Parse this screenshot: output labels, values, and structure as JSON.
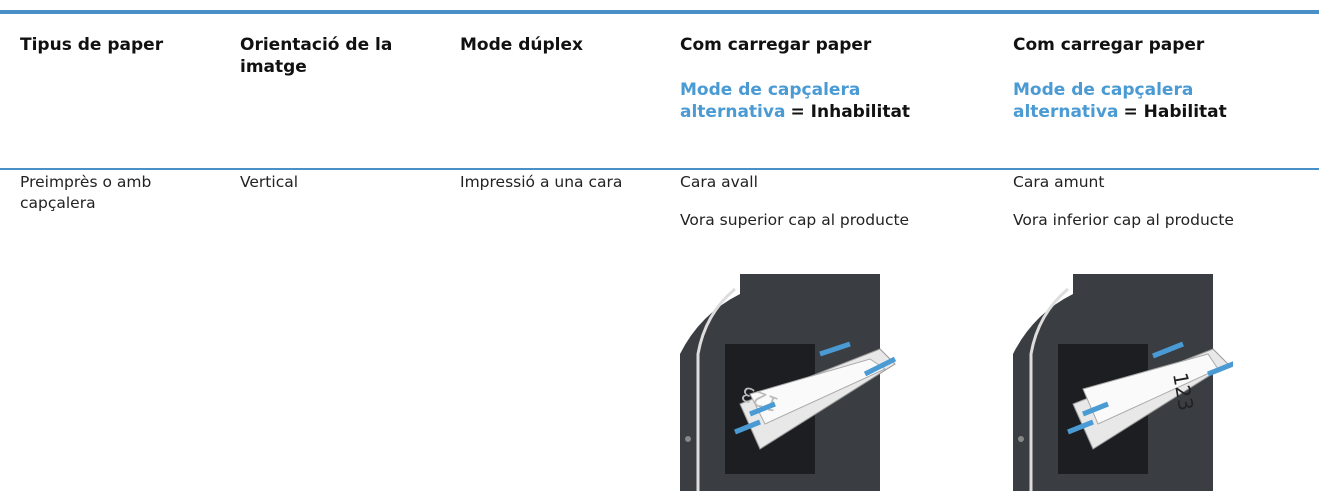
{
  "table": {
    "header": [
      {
        "text": "Tipus de paper"
      },
      {
        "text": "Orientació de la imatge"
      },
      {
        "text": "Mode dúplex"
      },
      {
        "text": "Com carregar paper",
        "setting": "Mode de capçalera alternativa",
        "state": "= Inhabilitat"
      },
      {
        "text": "Com carregar paper",
        "setting": "Mode de capçalera alternativa",
        "state": "= Habilitat"
      }
    ],
    "rows": [
      [
        {
          "text": "Preimprès o amb capçalera"
        },
        {
          "text": "Vertical"
        },
        {
          "text": "Impressió a una cara"
        },
        {
          "text": "Cara avall",
          "detail": "Vora superior cap al producte",
          "paper_text": "123"
        },
        {
          "text": "Cara amunt",
          "detail": "Vora inferior cap al producte",
          "paper_text": "123"
        }
      ]
    ]
  }
}
